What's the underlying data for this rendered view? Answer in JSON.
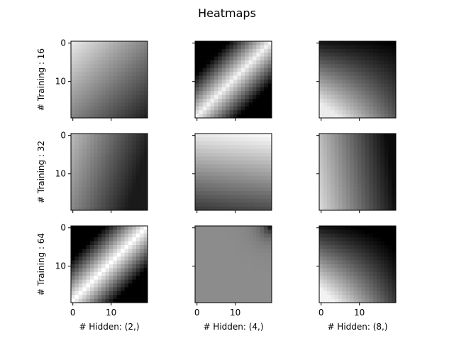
{
  "chart_data": {
    "type": "heatmap",
    "title": "Heatmaps",
    "colormap": "gray",
    "grid": false,
    "rows": [
      "# Training : 16",
      "# Training : 32",
      "# Training : 64"
    ],
    "cols": [
      "# Hidden: (2,)",
      "# Hidden: (4,)",
      "# Hidden: (8,)"
    ],
    "matrix_size": [
      20,
      20
    ],
    "xticks": [
      "0",
      "10"
    ],
    "yticks": [
      "0",
      "10"
    ],
    "value_range": [
      0,
      1
    ],
    "panels": [
      {
        "row": 0,
        "col": 0,
        "pattern": "linear",
        "params": {
          "c": 0.9,
          "ax": -0.02,
          "ay": -0.02,
          "lo": 0.0,
          "hi": 1.0
        }
      },
      {
        "row": 0,
        "col": 1,
        "pattern": "diagonal_band",
        "params": {
          "c": 0.95,
          "k": 0.085,
          "lo": 0.0,
          "hi": 0.98
        }
      },
      {
        "row": 0,
        "col": 2,
        "pattern": "cross",
        "params": {
          "c": 0.38,
          "a": 0.035,
          "b": 0.022,
          "d": -0.0018,
          "lo": 0.0,
          "hi": 0.92
        }
      },
      {
        "row": 1,
        "col": 0,
        "pattern": "linear",
        "params": {
          "c": 0.72,
          "ax": -0.03,
          "ay": -0.01,
          "lo": 0.1,
          "hi": 1.0
        }
      },
      {
        "row": 1,
        "col": 1,
        "pattern": "linear",
        "params": {
          "c": 0.9,
          "ax": 0.004,
          "ay": -0.035,
          "lo": 0.0,
          "hi": 1.0
        }
      },
      {
        "row": 1,
        "col": 2,
        "pattern": "linear",
        "params": {
          "c": 0.72,
          "ax": -0.04,
          "ay": 0.006,
          "lo": 0.04,
          "hi": 1.0
        }
      },
      {
        "row": 2,
        "col": 0,
        "pattern": "diagonal_band",
        "params": {
          "c": 1.0,
          "k": 0.09,
          "lo": 0.0,
          "hi": 1.0
        }
      },
      {
        "row": 2,
        "col": 1,
        "pattern": "flat_corner",
        "params": {
          "base": 0.55,
          "corner": 0.12,
          "decay": 0.45
        }
      },
      {
        "row": 2,
        "col": 2,
        "pattern": "cross",
        "params": {
          "c": 0.33,
          "a": 0.035,
          "b": 0.028,
          "d": -0.0019,
          "lo": 0.0,
          "hi": 0.95
        }
      }
    ]
  }
}
